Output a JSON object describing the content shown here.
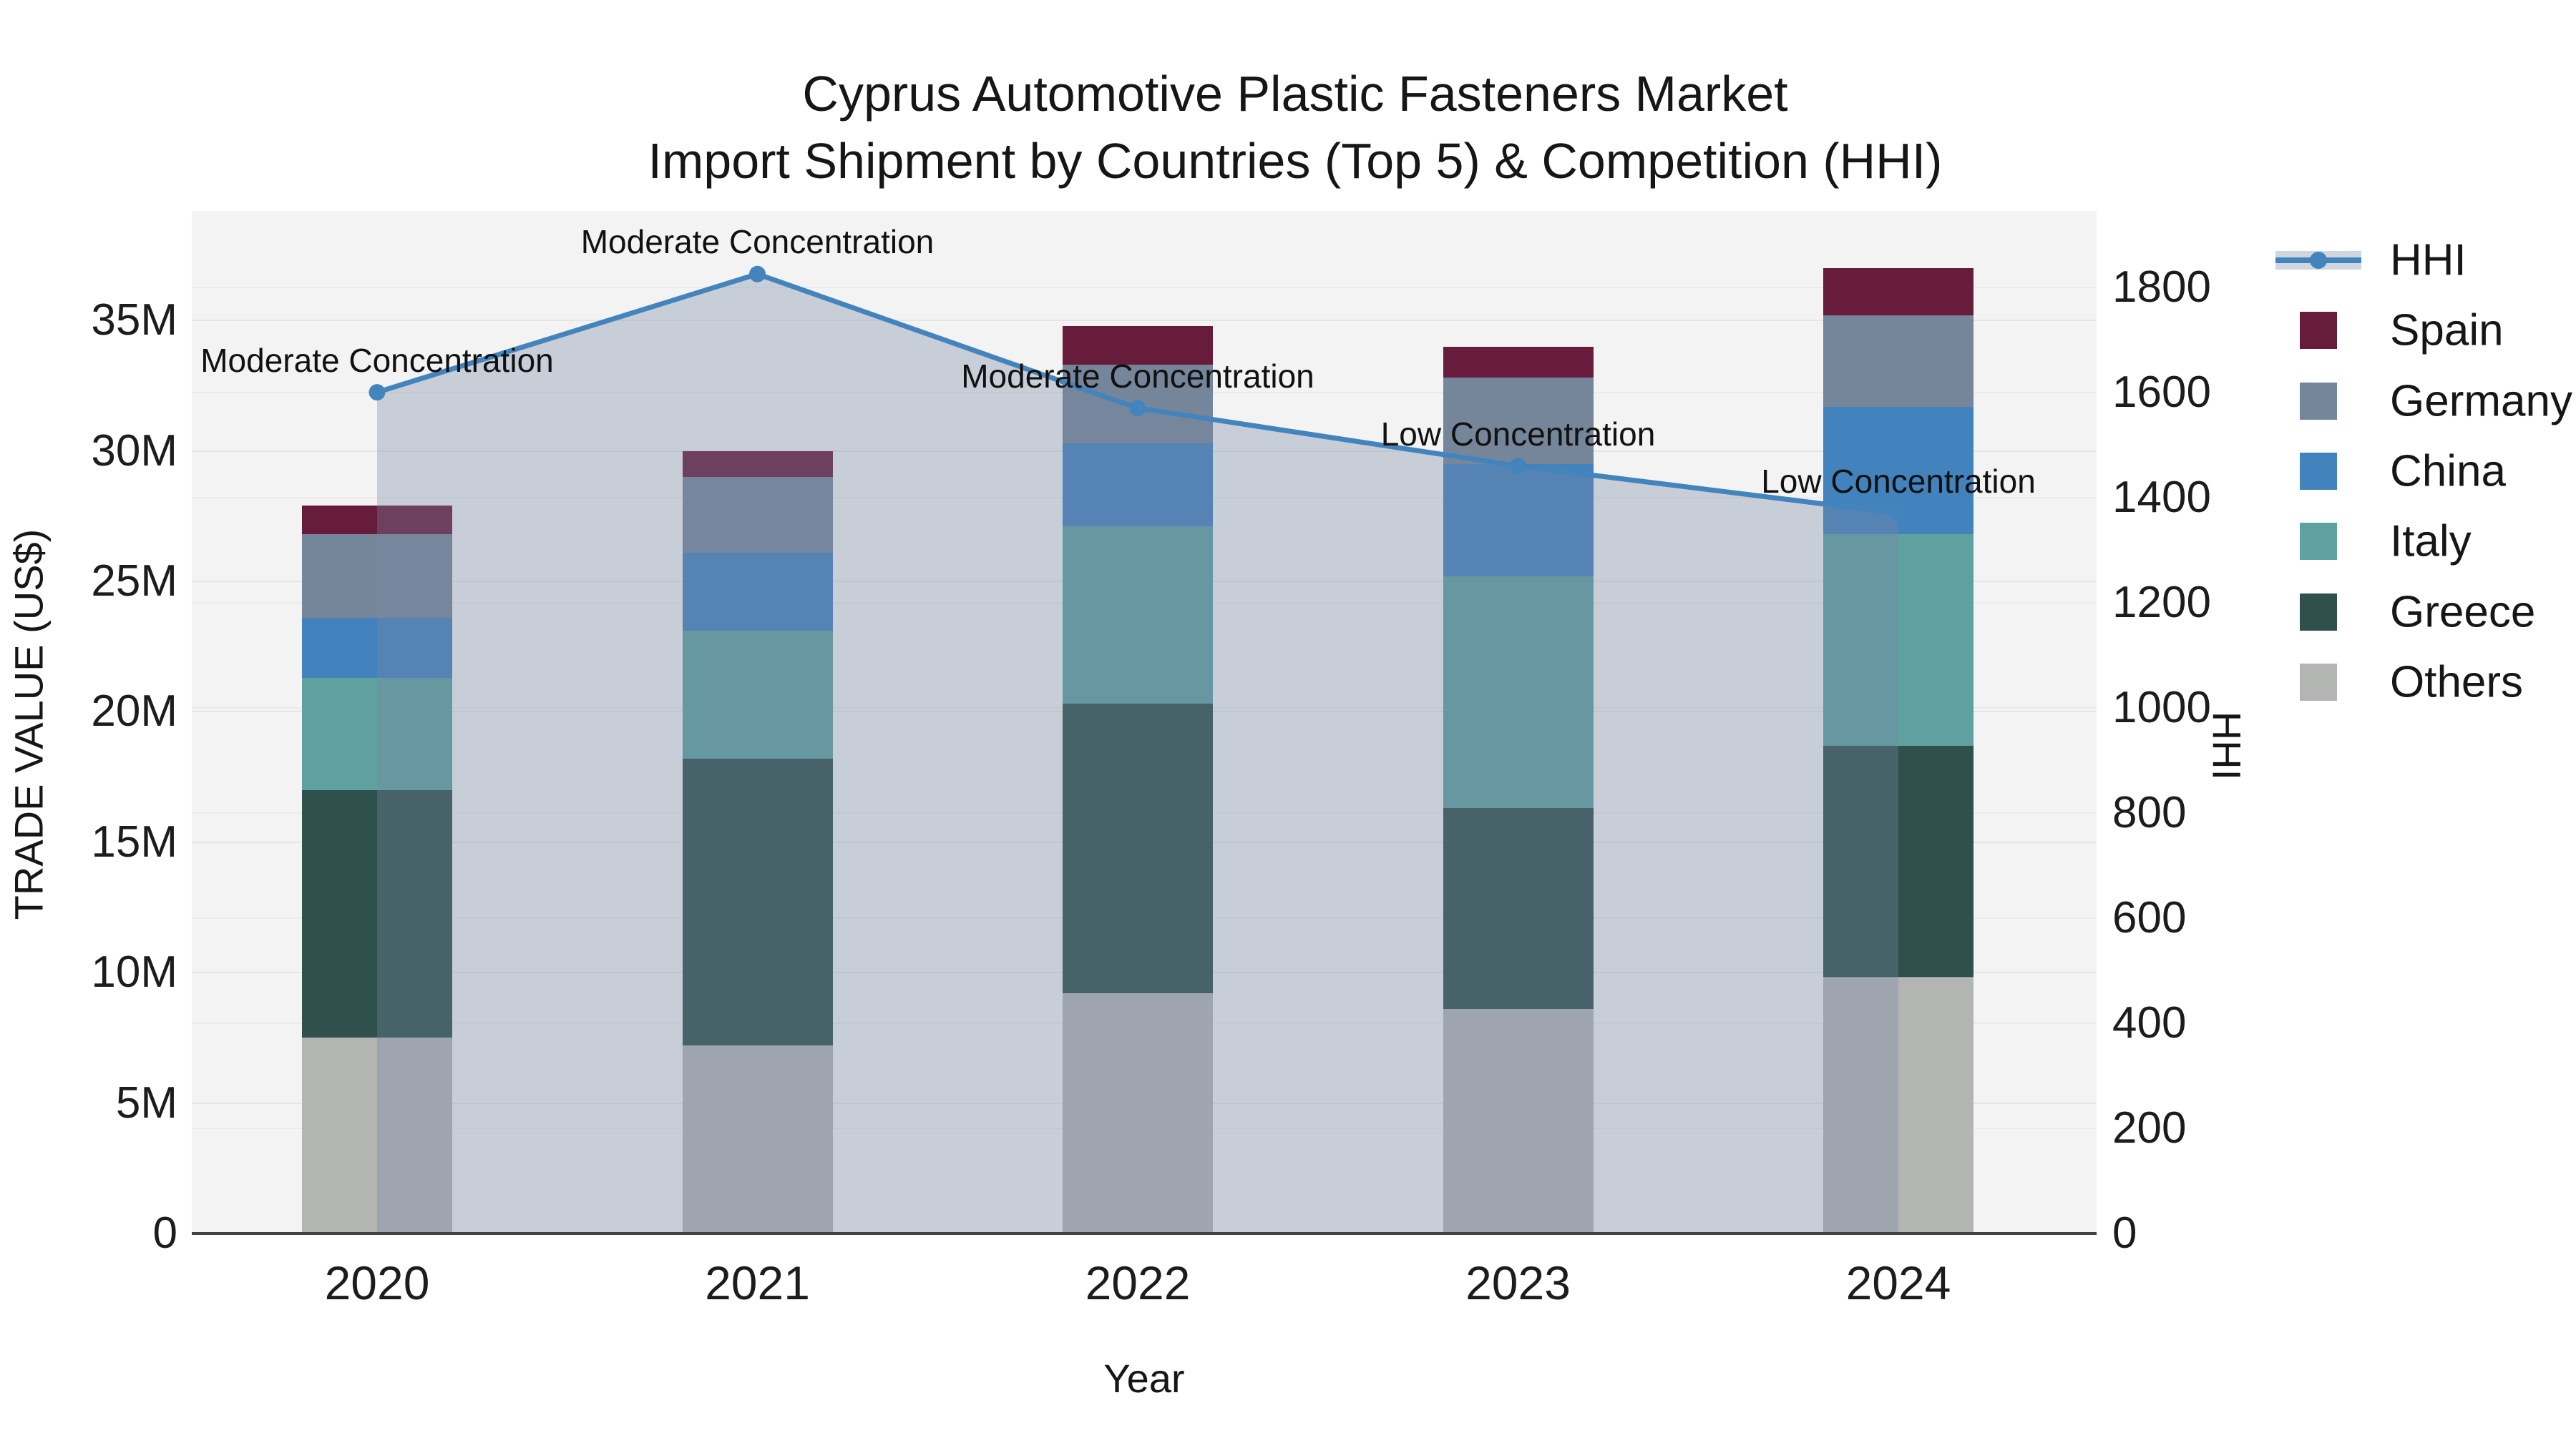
{
  "title": {
    "line1": "Cyprus Automotive Plastic Fasteners Market",
    "line2": "Import Shipment by Countries (Top 5) & Competition (HHI)"
  },
  "axes": {
    "x": {
      "title": "Year",
      "tick_labels": [
        "2020",
        "2021",
        "2022",
        "2023",
        "2024"
      ]
    },
    "y_left": {
      "title": "TRADE VALUE (US$)",
      "tick_labels": [
        "0",
        "5M",
        "10M",
        "15M",
        "20M",
        "25M",
        "30M",
        "35M"
      ],
      "tick_values": [
        0,
        5,
        10,
        15,
        20,
        25,
        30,
        35
      ],
      "range_max": 39.2
    },
    "y_right": {
      "title": "HHI",
      "tick_labels": [
        "0",
        "200",
        "400",
        "600",
        "800",
        "1000",
        "1200",
        "1400",
        "1600",
        "1800"
      ],
      "tick_values": [
        0,
        200,
        400,
        600,
        800,
        1000,
        1200,
        1400,
        1600,
        1800
      ],
      "range_max": 1945
    }
  },
  "legend": {
    "items": [
      {
        "label": "HHI",
        "swatch": "line",
        "color": "#4484bc"
      },
      {
        "label": "Spain",
        "swatch": "square",
        "color": "#681c3c"
      },
      {
        "label": "Germany",
        "swatch": "square",
        "color": "#75869a"
      },
      {
        "label": "China",
        "swatch": "square",
        "color": "#4383bd"
      },
      {
        "label": "Italy",
        "swatch": "square",
        "color": "#5fa0a0"
      },
      {
        "label": "Greece",
        "swatch": "square",
        "color": "#2f504c"
      },
      {
        "label": "Others",
        "swatch": "square",
        "color": "#b3b5b3"
      }
    ]
  },
  "annotations": [
    {
      "category": "2020",
      "text": "Moderate Concentration"
    },
    {
      "category": "2021",
      "text": "Moderate Concentration"
    },
    {
      "category": "2022",
      "text": "Moderate Concentration"
    },
    {
      "category": "2023",
      "text": "Low Concentration"
    },
    {
      "category": "2024",
      "text": "Low Concentration"
    }
  ],
  "chart_data": {
    "type": "bar-line-combo",
    "title": "Cyprus Automotive Plastic Fasteners Market — Import Shipment by Countries (Top 5) & Competition (HHI)",
    "categories": [
      "2020",
      "2021",
      "2022",
      "2023",
      "2024"
    ],
    "bar_unit": "millions US$",
    "stack_order_bottom_to_top": [
      "Others",
      "Greece",
      "Italy",
      "China",
      "Germany",
      "Spain"
    ],
    "series": [
      {
        "name": "Others",
        "color": "#b3b5b3",
        "values": [
          7.5,
          7.2,
          9.2,
          8.6,
          9.8
        ]
      },
      {
        "name": "Greece",
        "color": "#2f504c",
        "values": [
          9.5,
          11.0,
          11.1,
          7.7,
          8.9
        ]
      },
      {
        "name": "Italy",
        "color": "#5fa0a0",
        "values": [
          4.3,
          4.9,
          6.8,
          8.9,
          8.1
        ]
      },
      {
        "name": "China",
        "color": "#4383bd",
        "values": [
          2.3,
          3.0,
          3.2,
          4.3,
          4.9
        ]
      },
      {
        "name": "Germany",
        "color": "#75869a",
        "values": [
          3.2,
          2.9,
          3.0,
          3.3,
          3.5
        ]
      },
      {
        "name": "Spain",
        "color": "#681c3c",
        "values": [
          1.1,
          1.0,
          1.5,
          1.2,
          1.8
        ]
      }
    ],
    "bar_totals": [
      27.9,
      30.0,
      34.8,
      34.0,
      37.0
    ],
    "line_series": {
      "name": "HHI",
      "color": "#4484bc",
      "area_fill": "rgba(120,135,165,0.34)",
      "values": [
        1600,
        1825,
        1570,
        1460,
        1370
      ],
      "axis": "right"
    },
    "ylim_left": [
      0,
      39.2
    ],
    "ylim_right": [
      0,
      1945
    ],
    "grid": "horizontal-both-axes",
    "legend_position": "right",
    "style": {
      "plot_bg": "#f2f3f2",
      "grid_major": "#e4e6e6",
      "grid_minor": "#eaebeb",
      "axis_line": "#424242",
      "legend_band": "#cfd6df"
    }
  }
}
